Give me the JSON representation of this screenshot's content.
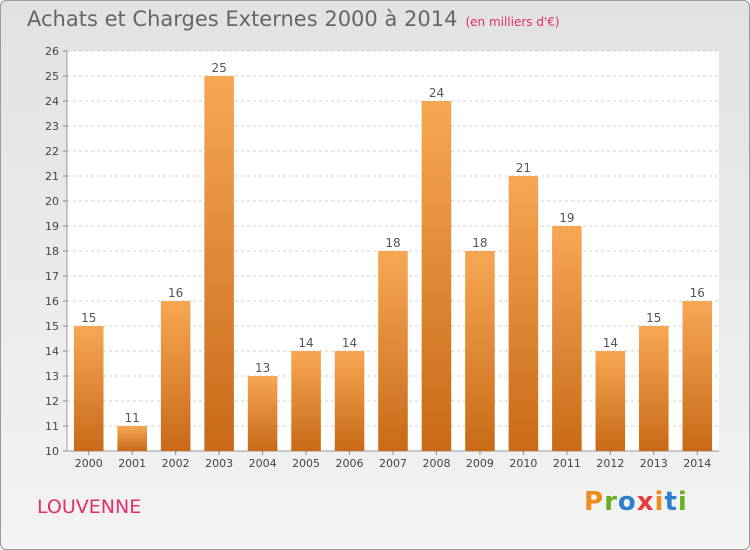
{
  "chart_data": {
    "type": "bar",
    "title": "Achats et Charges Externes 2000 à 2014",
    "subtitle": "(en milliers d'€)",
    "categories": [
      "2000",
      "2001",
      "2002",
      "2003",
      "2004",
      "2005",
      "2006",
      "2007",
      "2008",
      "2009",
      "2010",
      "2011",
      "2012",
      "2013",
      "2014"
    ],
    "values": [
      15,
      11,
      16,
      25,
      13,
      14,
      14,
      18,
      24,
      18,
      21,
      19,
      14,
      15,
      16
    ],
    "ylim": [
      10,
      26
    ],
    "yticks": [
      10,
      11,
      12,
      13,
      14,
      15,
      16,
      17,
      18,
      19,
      20,
      21,
      22,
      23,
      24,
      25,
      26
    ],
    "grid": true,
    "bar_color_light": "#f7a753",
    "bar_color_dark": "#c86a18"
  },
  "location": "LOUVENNE",
  "brand": {
    "text": "Proxiti",
    "letters": [
      "P",
      "r",
      "o",
      "x",
      "i",
      "t",
      "i"
    ],
    "colors": [
      "#f08a1c",
      "#6ab023",
      "#2f7fd0",
      "#e23c3c",
      "#f08a1c",
      "#2f7fd0",
      "#6ab023"
    ]
  }
}
